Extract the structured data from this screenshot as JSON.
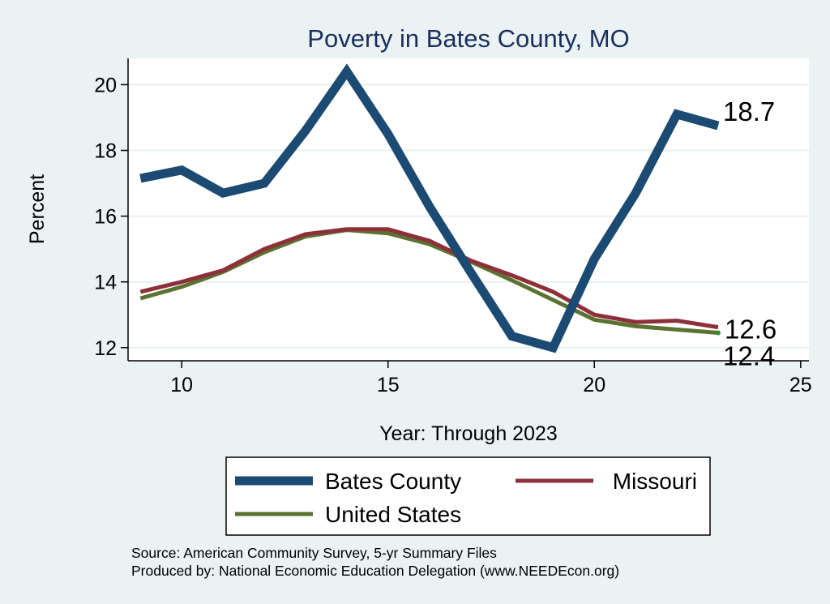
{
  "chart_data": {
    "type": "line",
    "title": "Poverty in Bates County, MO",
    "xlabel": "Year: Through 2023",
    "ylabel": "Percent",
    "xlim": [
      8.7,
      25.2
    ],
    "ylim": [
      11.6,
      20.8
    ],
    "xticks": [
      10,
      15,
      20,
      25
    ],
    "yticks": [
      12,
      14,
      16,
      18,
      20
    ],
    "grid": true,
    "legend_position": "bottom",
    "series": [
      {
        "name": "Bates County",
        "color": "#1b4a72",
        "x": [
          9,
          10,
          11,
          12,
          13,
          14,
          15,
          16,
          17,
          18,
          19,
          20,
          21,
          22,
          23
        ],
        "y": [
          17.15,
          17.4,
          16.7,
          17.0,
          18.6,
          20.4,
          18.5,
          16.3,
          14.3,
          12.35,
          12.0,
          14.7,
          16.7,
          19.1,
          18.75
        ],
        "end_label": "18.7"
      },
      {
        "name": "Missouri",
        "color": "#8e3039",
        "x": [
          9,
          10,
          11,
          12,
          13,
          14,
          15,
          16,
          17,
          18,
          19,
          20,
          21,
          22,
          23
        ],
        "y": [
          13.7,
          14.0,
          14.35,
          15.0,
          15.45,
          15.6,
          15.6,
          15.25,
          14.65,
          14.2,
          13.7,
          13.0,
          12.78,
          12.82,
          12.62
        ],
        "end_label": "12.6"
      },
      {
        "name": "United States",
        "color": "#5b7331",
        "x": [
          9,
          10,
          11,
          12,
          13,
          14,
          15,
          16,
          17,
          18,
          19,
          20,
          21,
          22,
          23
        ],
        "y": [
          13.5,
          13.85,
          14.3,
          14.9,
          15.38,
          15.58,
          15.48,
          15.15,
          14.62,
          14.05,
          13.45,
          12.85,
          12.65,
          12.55,
          12.45
        ],
        "end_label": "12.4"
      }
    ],
    "notes": [
      "Source: American Community Survey, 5-yr Summary Files",
      "Produced by: National Economic Education Delegation (www.NEEDEcon.org)"
    ]
  }
}
